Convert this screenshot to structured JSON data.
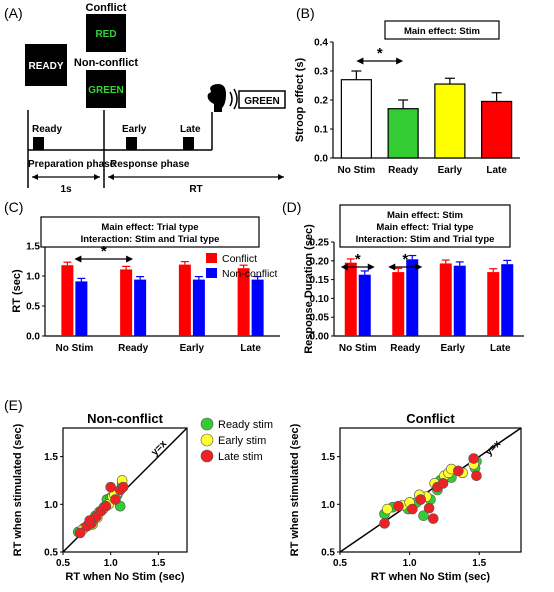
{
  "panels": {
    "a": "(A)",
    "b": "(B)",
    "c": "(C)",
    "d": "(D)",
    "e": "(E)"
  },
  "panel_a": {
    "ready_box": "READY",
    "conflict_label": "Conflict",
    "conflict_word": "RED",
    "nonconflict_label": "Non-conflict",
    "nonconflict_word": "GREEN",
    "response_word": "GREEN",
    "ready_marker": "Ready",
    "early_marker": "Early",
    "late_marker": "Late",
    "prep_phase": "Preparation phase",
    "resp_phase": "Response phase",
    "prep_duration": "1s",
    "resp_duration": "RT",
    "colors": {
      "word_green": "#35d335",
      "box": "#000000"
    }
  },
  "significance_mark": "*",
  "chart_data": [
    {
      "id": "B",
      "type": "bar",
      "title": "Main effect: Stim",
      "ylabel": "Stroop effect (s)",
      "xlabel": "",
      "categories": [
        "No Stim",
        "Ready",
        "Early",
        "Late"
      ],
      "values": [
        0.27,
        0.17,
        0.255,
        0.195
      ],
      "errors": [
        0.03,
        0.03,
        0.02,
        0.03
      ],
      "colors": [
        "#ffffff",
        "#33cc33",
        "#ffff00",
        "#ff0000"
      ],
      "ylim": [
        0,
        0.4
      ],
      "yticks": [
        "0.0",
        "0.1",
        "0.2",
        "0.3",
        "0.4"
      ],
      "significance": [
        {
          "from": "No Stim",
          "to": "Ready",
          "mark": "*"
        }
      ]
    },
    {
      "id": "C",
      "type": "bar",
      "title": [
        "Main effect: Trial type",
        "Interaction: Stim and Trial type"
      ],
      "ylabel": "RT (sec)",
      "xlabel": "",
      "categories": [
        "No Stim",
        "Ready",
        "Early",
        "Late"
      ],
      "series": [
        {
          "name": "Conflict",
          "color": "#ff0000",
          "values": [
            1.18,
            1.11,
            1.19,
            1.13
          ],
          "errors": [
            0.05,
            0.05,
            0.05,
            0.05
          ]
        },
        {
          "name": "Non-conflict",
          "color": "#0000ff",
          "values": [
            0.91,
            0.94,
            0.94,
            0.94
          ],
          "errors": [
            0.05,
            0.05,
            0.05,
            0.05
          ]
        }
      ],
      "ylim": [
        0,
        1.5
      ],
      "yticks": [
        "0.0",
        "0.5",
        "1.0",
        "1.5"
      ],
      "legend_position": "top-right",
      "significance": [
        {
          "from": "No Stim",
          "to": "Ready",
          "mark": "*"
        }
      ]
    },
    {
      "id": "D",
      "type": "bar",
      "title": [
        "Main effect: Stim",
        "Main effect: Trial type",
        "Interaction: Stim and Trial type"
      ],
      "ylabel": "Response Duration (sec)",
      "xlabel": "",
      "categories": [
        "No Stim",
        "Ready",
        "Early",
        "Late"
      ],
      "series": [
        {
          "name": "Conflict",
          "color": "#ff0000",
          "values": [
            0.195,
            0.17,
            0.193,
            0.17
          ],
          "errors": [
            0.01,
            0.01,
            0.009,
            0.009
          ]
        },
        {
          "name": "Non-conflict",
          "color": "#0000ff",
          "values": [
            0.163,
            0.204,
            0.187,
            0.191
          ],
          "errors": [
            0.01,
            0.01,
            0.01,
            0.01
          ]
        }
      ],
      "ylim": [
        0,
        0.25
      ],
      "yticks": [
        "0.00",
        "0.05",
        "0.10",
        "0.15",
        "0.20",
        "0.25"
      ],
      "significance": [
        {
          "group": "No Stim",
          "mark": "*"
        },
        {
          "group": "Ready",
          "mark": "*"
        }
      ]
    },
    {
      "id": "E1",
      "type": "scatter",
      "title": "Non-conflict",
      "xlabel": "RT when No Stim (sec)",
      "ylabel": "RT when stimulated (sec)",
      "xlim": [
        0.5,
        1.8
      ],
      "ylim": [
        0.5,
        1.8
      ],
      "xticks": [
        "0.5",
        "1.0",
        "1.5"
      ],
      "yticks": [
        "0.5",
        "1.0",
        "1.5"
      ],
      "identity_label": "y=x",
      "series": [
        {
          "name": "Ready stim",
          "color": "#33cc33",
          "points": [
            [
              0.66,
              0.71
            ],
            [
              0.72,
              0.75
            ],
            [
              0.79,
              0.82
            ],
            [
              0.84,
              0.88
            ],
            [
              0.88,
              0.92
            ],
            [
              0.93,
              0.97
            ],
            [
              0.96,
              1.05
            ],
            [
              1.0,
              1.07
            ],
            [
              1.07,
              1.1
            ],
            [
              1.12,
              1.21
            ],
            [
              1.1,
              0.98
            ]
          ]
        },
        {
          "name": "Early stim",
          "color": "#ffff33",
          "points": [
            [
              0.7,
              0.73
            ],
            [
              0.76,
              0.78
            ],
            [
              0.82,
              0.84
            ],
            [
              0.86,
              0.86
            ],
            [
              0.92,
              0.95
            ],
            [
              0.98,
              1.0
            ],
            [
              1.02,
              1.08
            ],
            [
              1.08,
              1.13
            ],
            [
              1.12,
              1.25
            ],
            [
              1.04,
              1.1
            ],
            [
              0.81,
              0.79
            ]
          ]
        },
        {
          "name": "Late stim",
          "color": "#ee2222",
          "points": [
            [
              0.68,
              0.7
            ],
            [
              0.75,
              0.77
            ],
            [
              0.8,
              0.8
            ],
            [
              0.85,
              0.87
            ],
            [
              0.9,
              0.93
            ],
            [
              0.95,
              0.98
            ],
            [
              1.0,
              1.18
            ],
            [
              1.05,
              1.05
            ],
            [
              1.1,
              1.15
            ],
            [
              1.13,
              1.18
            ],
            [
              0.78,
              0.83
            ]
          ]
        }
      ]
    },
    {
      "id": "E2",
      "type": "scatter",
      "title": "Conflict",
      "xlabel": "RT when No Stim (sec)",
      "ylabel": "RT when stimulated (sec)",
      "xlim": [
        0.5,
        1.8
      ],
      "ylim": [
        0.5,
        1.8
      ],
      "xticks": [
        "0.5",
        "1.0",
        "1.5"
      ],
      "yticks": [
        "0.5",
        "1.0",
        "1.5"
      ],
      "identity_label": "y=x",
      "series": [
        {
          "name": "Ready stim",
          "color": "#33cc33",
          "points": [
            [
              0.82,
              0.9
            ],
            [
              0.88,
              0.97
            ],
            [
              1.05,
              1.02
            ],
            [
              1.1,
              0.88
            ],
            [
              1.15,
              1.05
            ],
            [
              1.2,
              1.15
            ],
            [
              1.22,
              1.25
            ],
            [
              1.3,
              1.28
            ],
            [
              1.47,
              1.38
            ],
            [
              1.48,
              1.45
            ],
            [
              0.99,
              0.95
            ]
          ]
        },
        {
          "name": "Early stim",
          "color": "#ffff33",
          "points": [
            [
              0.84,
              0.95
            ],
            [
              0.95,
              0.99
            ],
            [
              1.0,
              1.02
            ],
            [
              1.12,
              1.08
            ],
            [
              1.18,
              1.22
            ],
            [
              1.25,
              1.3
            ],
            [
              1.28,
              1.33
            ],
            [
              1.3,
              1.37
            ],
            [
              1.46,
              1.42
            ],
            [
              1.38,
              1.33
            ],
            [
              1.07,
              1.1
            ]
          ]
        },
        {
          "name": "Late stim",
          "color": "#ee2222",
          "points": [
            [
              0.82,
              0.8
            ],
            [
              0.92,
              0.98
            ],
            [
              1.02,
              0.95
            ],
            [
              1.08,
              1.05
            ],
            [
              1.14,
              0.96
            ],
            [
              1.2,
              1.18
            ],
            [
              1.24,
              1.22
            ],
            [
              1.35,
              1.35
            ],
            [
              1.46,
              1.48
            ],
            [
              1.48,
              1.3
            ],
            [
              1.17,
              0.85
            ]
          ]
        }
      ]
    }
  ]
}
